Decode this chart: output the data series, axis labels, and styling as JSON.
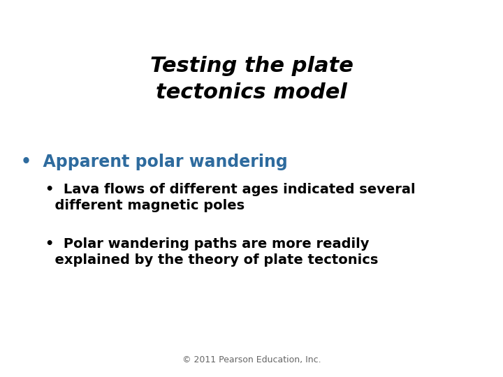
{
  "background_color": "#ffffff",
  "title_line1": "Testing the plate",
  "title_line2": "tectonics model",
  "title_color": "#000000",
  "title_fontsize": 22,
  "title_style": "italic",
  "title_weight": "bold",
  "bullet1_text": "Apparent polar wandering",
  "bullet1_color": "#2E6B9E",
  "bullet1_fontsize": 17,
  "bullet1_weight": "bold",
  "sub_bullet1_line1": "Lava flows of different ages indicated several",
  "sub_bullet1_line2": "  different magnetic poles",
  "sub_bullet2_line1": "Polar wandering paths are more readily",
  "sub_bullet2_line2": "  explained by the theory of plate tectonics",
  "sub_bullet_color": "#000000",
  "sub_bullet_fontsize": 14,
  "sub_bullet_weight": "bold",
  "footer_text": "© 2011 Pearson Education, Inc.",
  "footer_color": "#666666",
  "footer_fontsize": 9
}
